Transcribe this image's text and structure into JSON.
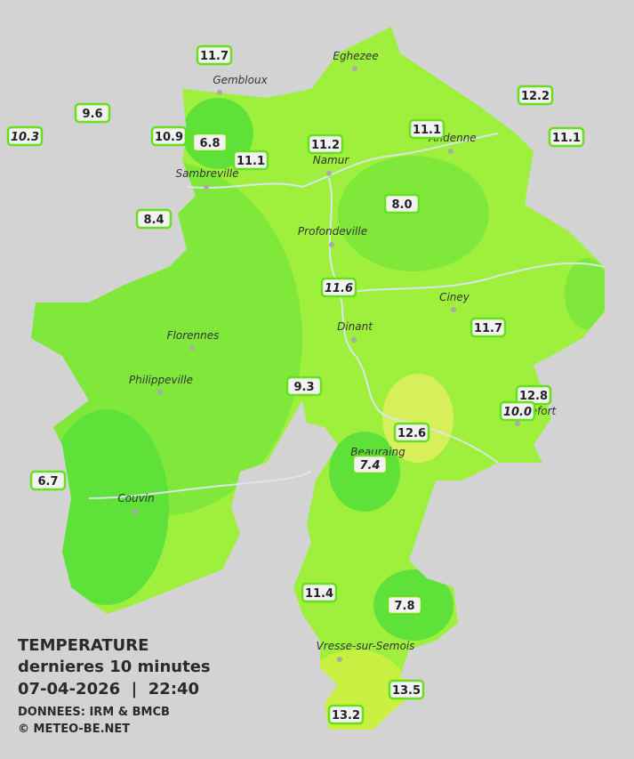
{
  "map": {
    "cities": [
      "Eghezee",
      "Gembloux",
      "Andenne",
      "Sambreville",
      "Namur",
      "Profondeville",
      "Ciney",
      "Dinant",
      "Florennes",
      "Philippeville",
      "Couvin",
      "Vresse-sur-Semois",
      "Beauraing",
      "Rochefort"
    ],
    "stations": [
      {
        "value": "11.7",
        "italic": false
      },
      {
        "value": "9.6",
        "italic": false
      },
      {
        "value": "10.3",
        "italic": true
      },
      {
        "value": "10.9",
        "italic": false
      },
      {
        "value": "6.8",
        "italic": false
      },
      {
        "value": "11.1",
        "italic": false
      },
      {
        "value": "11.2",
        "italic": false
      },
      {
        "value": "11.1",
        "italic": false
      },
      {
        "value": "12.2",
        "italic": false
      },
      {
        "value": "11.1",
        "italic": false
      },
      {
        "value": "8.4",
        "italic": false
      },
      {
        "value": "8.0",
        "italic": false
      },
      {
        "value": "11.6",
        "italic": true
      },
      {
        "value": "11.7",
        "italic": false
      },
      {
        "value": "9.3",
        "italic": false
      },
      {
        "value": "12.8",
        "italic": false
      },
      {
        "value": "10.0",
        "italic": true
      },
      {
        "value": "12.6",
        "italic": false
      },
      {
        "value": "7.4",
        "italic": true
      },
      {
        "value": "6.7",
        "italic": false
      },
      {
        "value": "11.4",
        "italic": false
      },
      {
        "value": "7.8",
        "italic": false
      },
      {
        "value": "13.5",
        "italic": false
      },
      {
        "value": "13.2",
        "italic": false
      }
    ]
  },
  "legend": {
    "title": "TEMPERATURE",
    "subtitle": "dernieres 10 minutes",
    "datetime": "07-04-2026  |  22:40",
    "source": "DONNEES: IRM & BMCB",
    "copyright": "© METEO-BE.NET"
  }
}
